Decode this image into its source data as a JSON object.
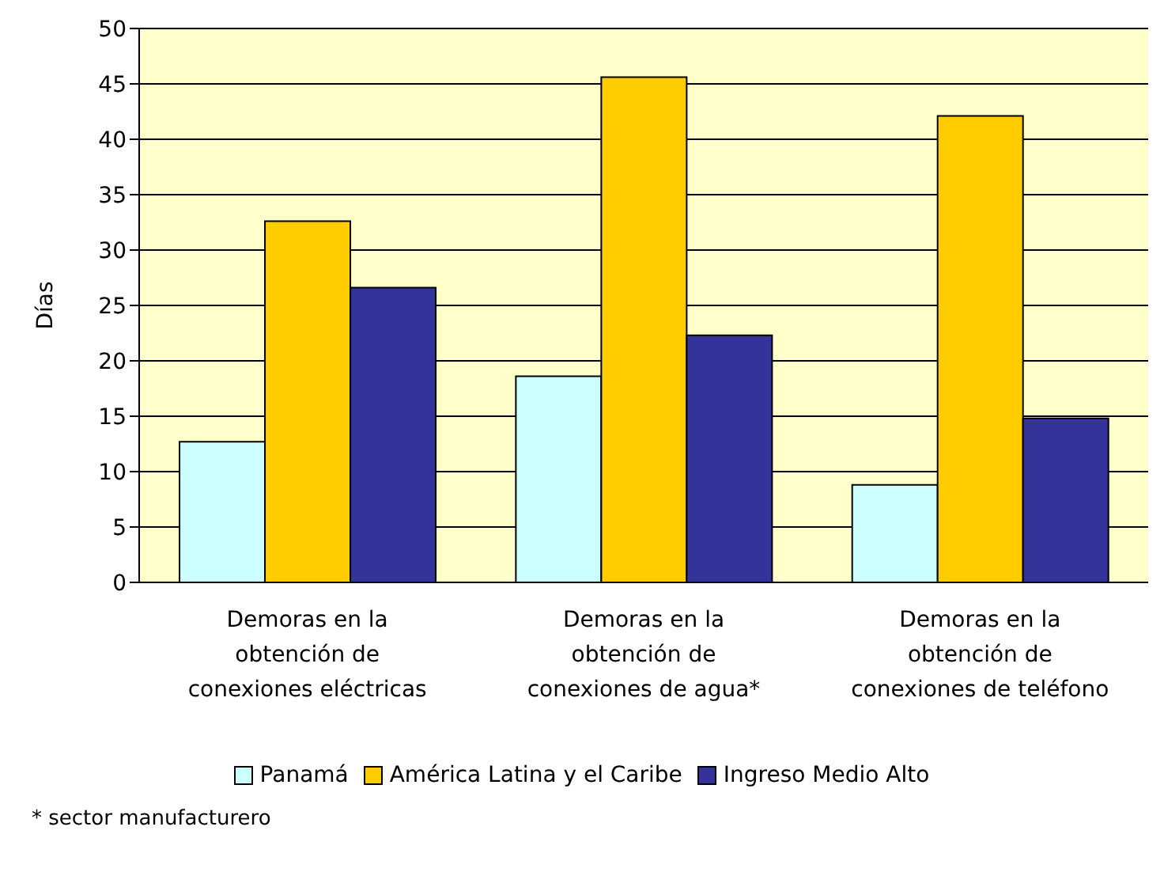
{
  "chart_data": {
    "type": "bar",
    "ylabel": "Días",
    "categories": [
      "Demoras en la obtención de conexiones eléctricas",
      "Demoras en la obtención de conexiones de agua*",
      "Demoras en la obtención de conexiones de teléfono"
    ],
    "series": [
      {
        "name": "Panamá",
        "color": "#ccffff",
        "values": [
          12.7,
          18.6,
          8.8
        ]
      },
      {
        "name": "América Latina y el Caribe",
        "color": "#ffcc00",
        "values": [
          32.6,
          45.6,
          42.1
        ]
      },
      {
        "name": "Ingreso Medio Alto",
        "color": "#333399",
        "values": [
          26.6,
          22.3,
          14.8
        ]
      }
    ],
    "ylim": [
      0,
      50
    ],
    "yticks": [
      0,
      5,
      10,
      15,
      20,
      25,
      30,
      35,
      40,
      45,
      50
    ],
    "grid": "y",
    "legend": "bottom",
    "annotations": [
      "* sector manufacturero"
    ]
  }
}
